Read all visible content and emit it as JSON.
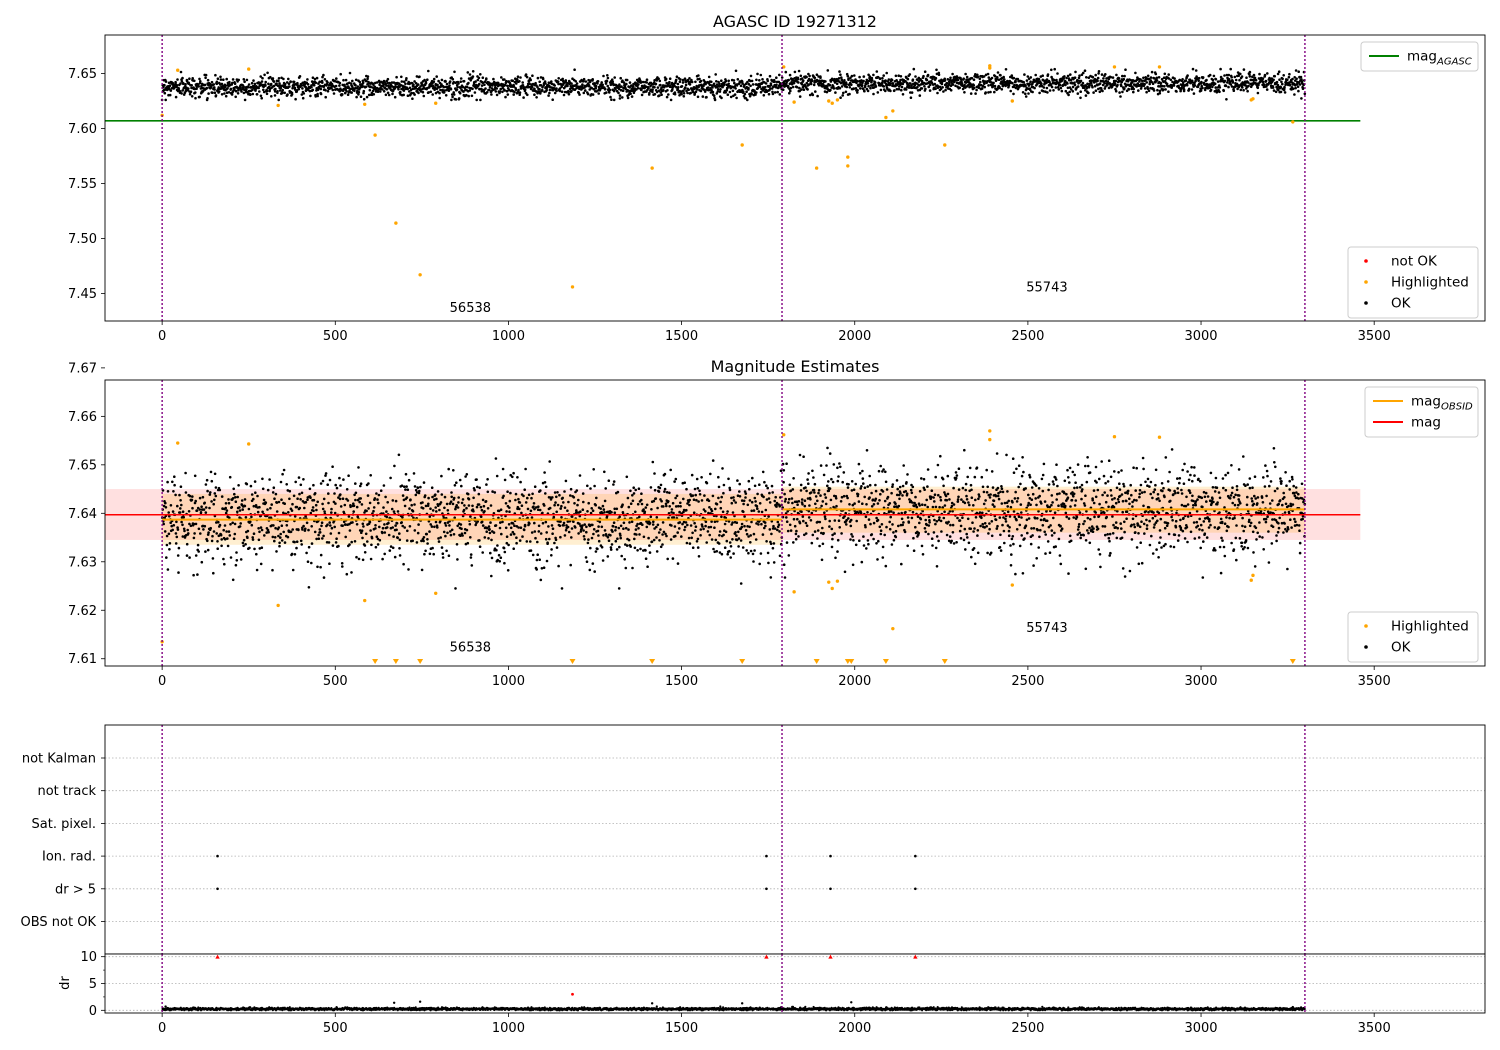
{
  "figure": {
    "title": "AGASC ID 19271312"
  },
  "chart_data": [
    {
      "type": "scatter",
      "panel": "top",
      "title": "",
      "xlim": [
        -165,
        3820
      ],
      "ylim": [
        7.425,
        7.685
      ],
      "x_ticks": [
        0,
        500,
        1000,
        1500,
        2000,
        2500,
        3000,
        3500
      ],
      "y_ticks": [
        7.45,
        7.5,
        7.55,
        7.6,
        7.65
      ],
      "y_tick_labels": [
        "7.45",
        "7.50",
        "7.55",
        "7.60",
        "7.65"
      ],
      "grid": false,
      "obs_boundaries": [
        0,
        1790,
        3300
      ],
      "obsid_labels": [
        {
          "text": "56538",
          "x": 890,
          "y": 7.433
        },
        {
          "text": "55743",
          "x": 2555,
          "y": 7.452
        }
      ],
      "series": [
        {
          "name": "OK",
          "color": "#000000",
          "bands": [
            {
              "x0": 0,
              "x1": 1790,
              "center": 7.638,
              "spread": 0.0045
            },
            {
              "x0": 1790,
              "x1": 3300,
              "center": 7.641,
              "spread": 0.0045
            }
          ],
          "sampled_points": 3300
        },
        {
          "name": "Highlighted",
          "color": "#ffa500",
          "points": [
            [
              0,
              7.612
            ],
            [
              45,
              7.653
            ],
            [
              250,
              7.654
            ],
            [
              335,
              7.621
            ],
            [
              585,
              7.622
            ],
            [
              615,
              7.594
            ],
            [
              675,
              7.514
            ],
            [
              745,
              7.467
            ],
            [
              790,
              7.623
            ],
            [
              1185,
              7.456
            ],
            [
              1415,
              7.564
            ],
            [
              1675,
              7.585
            ],
            [
              1795,
              7.656
            ],
            [
              1825,
              7.624
            ],
            [
              1890,
              7.564
            ],
            [
              1925,
              7.625
            ],
            [
              1935,
              7.623
            ],
            [
              1950,
              7.626
            ],
            [
              1980,
              7.574
            ],
            [
              1980,
              7.566
            ],
            [
              2090,
              7.61
            ],
            [
              2110,
              7.616
            ],
            [
              2260,
              7.585
            ],
            [
              2390,
              7.657
            ],
            [
              2390,
              7.655
            ],
            [
              2455,
              7.625
            ],
            [
              2750,
              7.656
            ],
            [
              2880,
              7.656
            ],
            [
              3145,
              7.626
            ],
            [
              3150,
              7.627
            ],
            [
              3265,
              7.606
            ]
          ]
        },
        {
          "name": "not OK",
          "color": "#ff0000",
          "points": []
        },
        {
          "name": "mag_AGASC",
          "color": "#008000",
          "line": {
            "x0": -165,
            "x1": 3460,
            "y": 7.607
          }
        }
      ],
      "legends": [
        {
          "position": "upper right",
          "entries": [
            {
              "label": "mag",
              "sub": "AGASC",
              "kind": "line",
              "color": "#008000"
            }
          ]
        },
        {
          "position": "lower right",
          "entries": [
            {
              "label": "not OK",
              "kind": "dot",
              "color": "#ff0000"
            },
            {
              "label": "Highlighted",
              "kind": "dot",
              "color": "#ffa500"
            },
            {
              "label": "OK",
              "kind": "dot",
              "color": "#000000"
            }
          ]
        }
      ]
    },
    {
      "type": "scatter",
      "panel": "middle",
      "title": "Magnitude Estimates",
      "xlim": [
        -165,
        3820
      ],
      "ylim": [
        7.6085,
        7.6675
      ],
      "x_ticks": [
        0,
        500,
        1000,
        1500,
        2000,
        2500,
        3000,
        3500
      ],
      "y_ticks": [
        7.61,
        7.62,
        7.63,
        7.64,
        7.65,
        7.66,
        7.67
      ],
      "y_tick_labels": [
        "7.61",
        "7.62",
        "7.63",
        "7.64",
        "7.65",
        "7.66",
        "7.67"
      ],
      "grid": false,
      "obs_boundaries": [
        0,
        1790,
        3300
      ],
      "obsid_labels": [
        {
          "text": "56538",
          "x": 890,
          "y": 7.6115
        },
        {
          "text": "55743",
          "x": 2555,
          "y": 7.6155
        }
      ],
      "series": [
        {
          "name": "mag",
          "color": "#ff0000",
          "line": {
            "x0": -165,
            "x1": 3460,
            "y": 7.6397
          },
          "band": [
            7.6345,
            7.645
          ]
        },
        {
          "name": "mag_OBSID",
          "color": "#ffa500",
          "segments": [
            {
              "x0": 0,
              "x1": 1790,
              "y": 7.6387,
              "band": [
                7.6335,
                7.644
              ]
            },
            {
              "x0": 1790,
              "x1": 3300,
              "y": 7.6408,
              "band": [
                7.636,
                7.6455
              ]
            }
          ]
        },
        {
          "name": "OK",
          "color": "#000000",
          "bands": [
            {
              "x0": 0,
              "x1": 1790,
              "center": 7.6387,
              "spread": 0.0045
            },
            {
              "x0": 1790,
              "x1": 3300,
              "center": 7.6408,
              "spread": 0.0045
            }
          ],
          "sampled_points": 3300
        },
        {
          "name": "Highlighted",
          "color": "#ffa500",
          "points": [
            [
              0,
              7.6135
            ],
            [
              45,
              7.6545
            ],
            [
              250,
              7.6543
            ],
            [
              335,
              7.621
            ],
            [
              585,
              7.622
            ],
            [
              790,
              7.6235
            ],
            [
              1795,
              7.6562
            ],
            [
              1825,
              7.6238
            ],
            [
              1925,
              7.6258
            ],
            [
              1935,
              7.6245
            ],
            [
              1950,
              7.626
            ],
            [
              2110,
              7.6162
            ],
            [
              2390,
              7.657
            ],
            [
              2390,
              7.6552
            ],
            [
              2455,
              7.6252
            ],
            [
              2750,
              7.6558
            ],
            [
              2880,
              7.6557
            ],
            [
              3145,
              7.6262
            ],
            [
              3150,
              7.6272
            ]
          ],
          "below_range_markers": [
            615,
            675,
            745,
            1185,
            1415,
            1675,
            1890,
            1980,
            1990,
            2090,
            2260,
            3265
          ]
        }
      ],
      "legends": [
        {
          "position": "upper right",
          "entries": [
            {
              "label": "mag",
              "sub": "OBSID",
              "kind": "line",
              "color": "#ffa500"
            },
            {
              "label": "mag",
              "sub": "",
              "kind": "line",
              "color": "#ff0000"
            }
          ]
        },
        {
          "position": "lower right",
          "entries": [
            {
              "label": "Highlighted",
              "kind": "dot",
              "color": "#ffa500"
            },
            {
              "label": "OK",
              "kind": "dot",
              "color": "#000000"
            }
          ]
        }
      ]
    },
    {
      "type": "scatter",
      "panel": "flags",
      "title": "",
      "xlim": [
        -165,
        3820
      ],
      "categories": [
        "not Kalman",
        "not track",
        "Sat. pixel.",
        "Ion. rad.",
        "dr > 5",
        "OBS not OK"
      ],
      "grid": true,
      "obs_boundaries": [
        0,
        1790,
        3300
      ],
      "series": [
        {
          "name": "Ion. rad.",
          "color": "#000000",
          "x": [
            160,
            1745,
            1930,
            2175
          ]
        },
        {
          "name": "dr > 5",
          "color": "#000000",
          "x": [
            160,
            1745,
            1930,
            2175
          ]
        }
      ]
    },
    {
      "type": "scatter",
      "panel": "dr",
      "title": "",
      "xlim": [
        -165,
        3820
      ],
      "ylim": [
        -0.5,
        10.5
      ],
      "ylabel": "dr",
      "x_ticks": [
        0,
        500,
        1000,
        1500,
        2000,
        2500,
        3000,
        3500
      ],
      "y_ticks": [
        0,
        5,
        10
      ],
      "y_tick_labels": [
        "0",
        "5",
        "10"
      ],
      "grid": true,
      "obs_boundaries": [
        0,
        1790,
        3300
      ],
      "series": [
        {
          "name": "dr",
          "color": "#000000",
          "baseline": 0.25,
          "sampled_points": 3300,
          "outliers": [
            [
              10,
              0.7
            ],
            [
              670,
              1.4
            ],
            [
              745,
              1.6
            ],
            [
              1415,
              1.3
            ],
            [
              1675,
              1.3
            ],
            [
              1990,
              1.5
            ],
            [
              3265,
              0.6
            ]
          ]
        },
        {
          "name": "dr clipped",
          "color": "#ff0000",
          "points": [
            [
              160,
              10
            ],
            [
              1745,
              10
            ],
            [
              1930,
              10
            ],
            [
              2175,
              10
            ],
            [
              1185,
              3.0
            ]
          ]
        }
      ]
    }
  ]
}
